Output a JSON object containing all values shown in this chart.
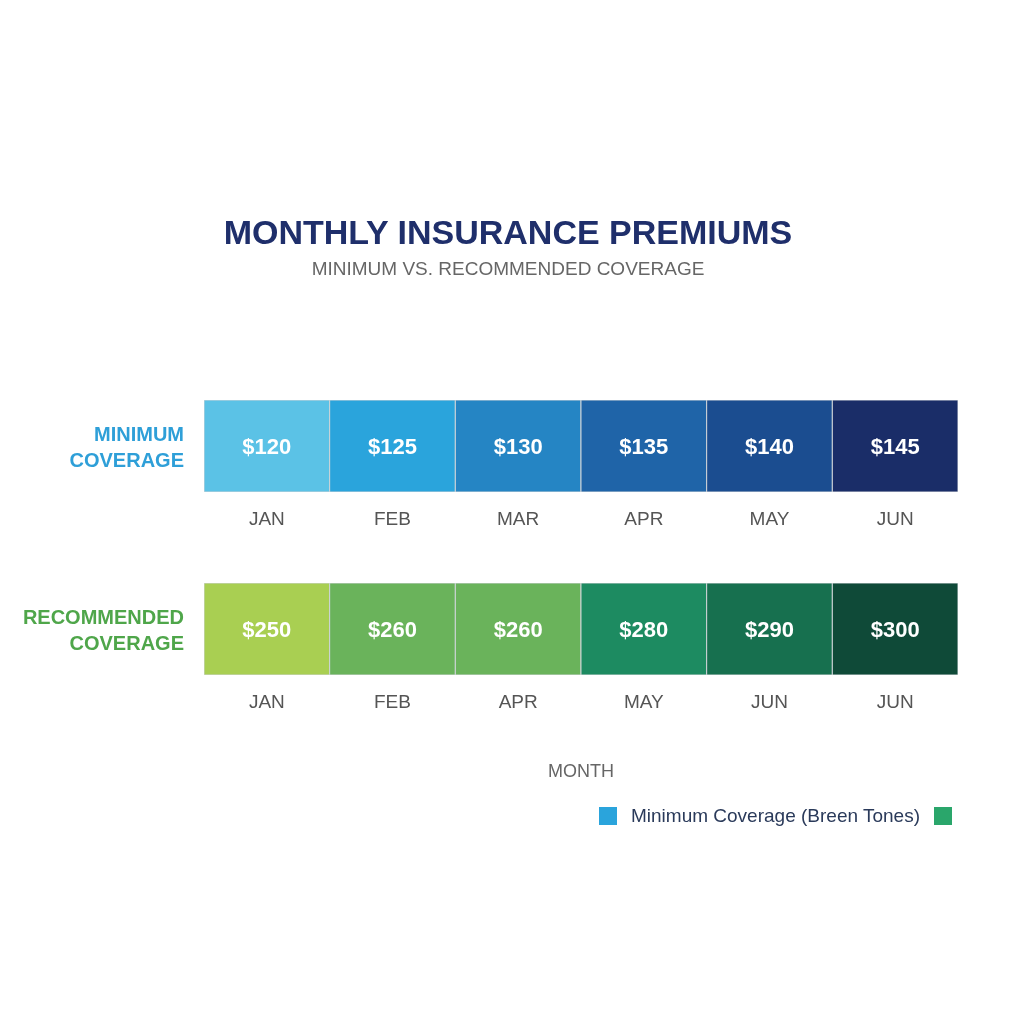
{
  "chart_data": [
    {
      "type": "heatmap",
      "title": "MONTHLY INSURANCE PREMIUMS",
      "subtitle": "MINIMUM VS. RECOMMENDED COVERAGE",
      "categories": [
        "JAN",
        "FEB",
        "MAR",
        "APR",
        "MAY",
        "JUN"
      ],
      "y_categories": [
        "MINIMUM COVERAGE"
      ],
      "cells": [
        [
          120,
          125,
          130,
          135,
          140,
          145
        ]
      ],
      "cell_labels": [
        [
          "$120",
          "$125",
          "$130",
          "$135",
          "$140",
          "$145"
        ]
      ]
    },
    {
      "type": "heatmap",
      "categories": [
        "JAN",
        "FEB",
        "APR",
        "MAY",
        "JUN",
        "JUN"
      ],
      "y_categories": [
        "RECOMMENDED COVERAGE"
      ],
      "cells": [
        [
          250,
          260,
          260,
          280,
          290,
          300
        ]
      ],
      "cell_labels": [
        [
          "$250",
          "$260",
          "$260",
          "$280",
          "$290",
          "$300"
        ]
      ],
      "xlabel": "MONTH",
      "annotations": [
        "Minimum Coverage (Breen Tones)"
      ]
    }
  ]
}
